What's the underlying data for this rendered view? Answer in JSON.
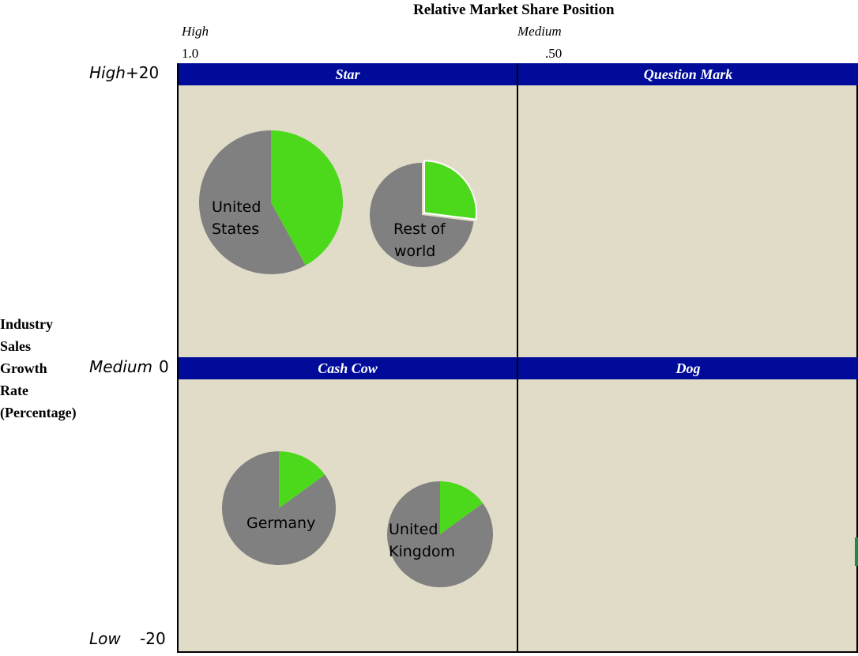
{
  "header": {
    "title": "Relative Market Share Position",
    "col_left_label": "High",
    "col_left_value": "1.0",
    "col_mid_label": "Medium",
    "col_mid_value": ".50"
  },
  "y_axis": {
    "label_lines": [
      "Industry",
      "Sales",
      "Growth",
      "Rate",
      "(Percentage)"
    ],
    "high_label": "High",
    "high_value": "+20",
    "medium_label": "Medium",
    "medium_value": "0",
    "low_label": "Low",
    "low_value": "-20"
  },
  "quadrants": {
    "star": "Star",
    "question_mark": "Question Mark",
    "cash_cow": "Cash Cow",
    "dog": "Dog"
  },
  "colors": {
    "band": "#000c99",
    "background": "#e0dcc7",
    "pie_gray": "#808080",
    "pie_green": "#4cd91c"
  },
  "regions": [
    {
      "key": "us",
      "label_lines": [
        "United",
        "States"
      ],
      "green_fraction": 0.42,
      "quadrant": "Star"
    },
    {
      "key": "row",
      "label_lines": [
        "Rest of",
        "world"
      ],
      "green_fraction": 0.27,
      "quadrant": "Star"
    },
    {
      "key": "germany",
      "label_lines": [
        "Germany"
      ],
      "green_fraction": 0.15,
      "quadrant": "Cash Cow"
    },
    {
      "key": "uk",
      "label_lines": [
        "United",
        "Kingdom"
      ],
      "green_fraction": 0.15,
      "quadrant": "Cash Cow"
    }
  ]
}
